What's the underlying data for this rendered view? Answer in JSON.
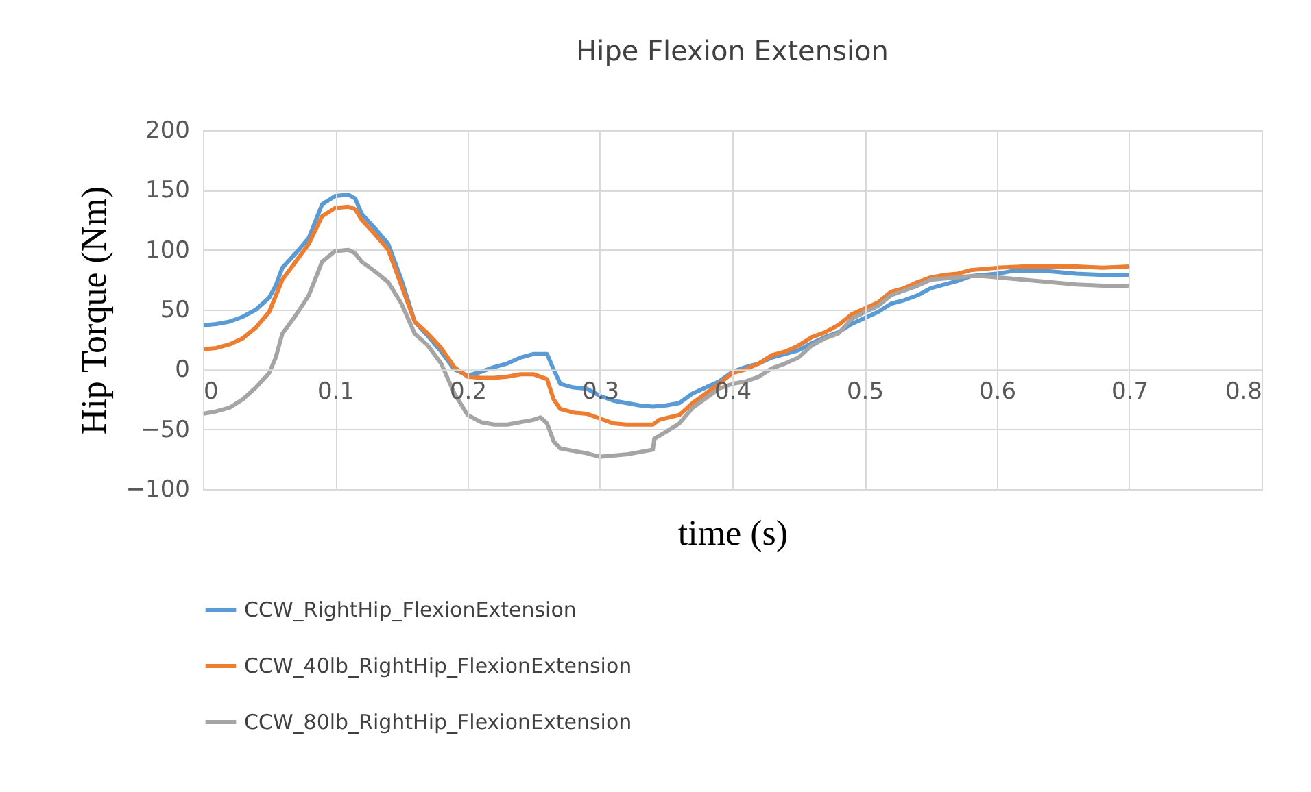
{
  "chart_data": {
    "type": "line",
    "title": "Hipe Flexion Extension",
    "xlabel": "time (s)",
    "ylabel": "Hip Torque (Nm)",
    "xlim": [
      0,
      0.8
    ],
    "xticks": [
      {
        "value": 0,
        "label": "0"
      },
      0.1,
      0.2,
      0.3,
      0.4,
      0.5,
      0.6,
      0.7,
      0.8
    ],
    "ylim": [
      -100,
      200
    ],
    "yticks": [
      -100,
      -50,
      0,
      50,
      100,
      150,
      200
    ],
    "grid": true,
    "legend": "bottom",
    "marker": "none",
    "line_style": "solid",
    "series": [
      {
        "name": "CCW_RightHip_FlexionExtension",
        "color": "#5b9bd5",
        "x": [
          0,
          0.01,
          0.02,
          0.03,
          0.04,
          0.05,
          0.055,
          0.06,
          0.07,
          0.08,
          0.09,
          0.1,
          0.11,
          0.115,
          0.12,
          0.13,
          0.14,
          0.15,
          0.16,
          0.17,
          0.18,
          0.19,
          0.2,
          0.21,
          0.22,
          0.23,
          0.24,
          0.25,
          0.26,
          0.265,
          0.27,
          0.28,
          0.29,
          0.3,
          0.31,
          0.32,
          0.33,
          0.34,
          0.35,
          0.36,
          0.37,
          0.38,
          0.39,
          0.4,
          0.41,
          0.42,
          0.43,
          0.44,
          0.45,
          0.46,
          0.47,
          0.48,
          0.49,
          0.5,
          0.51,
          0.52,
          0.53,
          0.54,
          0.55,
          0.56,
          0.57,
          0.58,
          0.59,
          0.6,
          0.61,
          0.62,
          0.64,
          0.66,
          0.68,
          0.7
        ],
        "values": [
          37,
          38,
          40,
          44,
          50,
          60,
          70,
          85,
          97,
          110,
          138,
          145,
          146,
          143,
          130,
          118,
          105,
          75,
          40,
          28,
          15,
          0,
          -5,
          -2,
          2,
          5,
          10,
          13,
          13,
          0,
          -12,
          -15,
          -16,
          -22,
          -26,
          -28,
          -30,
          -31,
          -30,
          -28,
          -20,
          -15,
          -10,
          -2,
          2,
          5,
          10,
          13,
          16,
          22,
          27,
          31,
          38,
          43,
          48,
          55,
          58,
          62,
          68,
          71,
          74,
          78,
          79,
          80,
          82,
          82,
          82,
          80,
          79,
          79
        ]
      },
      {
        "name": "CCW_40lb_RightHip_FlexionExtension",
        "color": "#ed7d31",
        "x": [
          0,
          0.01,
          0.02,
          0.03,
          0.04,
          0.05,
          0.06,
          0.07,
          0.08,
          0.09,
          0.1,
          0.11,
          0.115,
          0.12,
          0.13,
          0.14,
          0.15,
          0.16,
          0.17,
          0.18,
          0.19,
          0.2,
          0.21,
          0.22,
          0.23,
          0.24,
          0.25,
          0.26,
          0.265,
          0.27,
          0.28,
          0.29,
          0.3,
          0.31,
          0.32,
          0.33,
          0.34,
          0.345,
          0.36,
          0.37,
          0.38,
          0.39,
          0.4,
          0.41,
          0.42,
          0.43,
          0.44,
          0.45,
          0.46,
          0.47,
          0.48,
          0.49,
          0.5,
          0.51,
          0.52,
          0.53,
          0.54,
          0.55,
          0.56,
          0.57,
          0.58,
          0.59,
          0.6,
          0.62,
          0.64,
          0.66,
          0.68,
          0.7
        ],
        "values": [
          17,
          18,
          21,
          26,
          35,
          48,
          75,
          90,
          105,
          128,
          135,
          136,
          134,
          125,
          113,
          100,
          70,
          40,
          30,
          18,
          2,
          -6,
          -7,
          -7,
          -6,
          -4,
          -4,
          -8,
          -25,
          -33,
          -36,
          -37,
          -41,
          -45,
          -46,
          -46,
          -46,
          -42,
          -38,
          -28,
          -20,
          -12,
          -3,
          0,
          5,
          12,
          15,
          20,
          27,
          31,
          37,
          46,
          51,
          56,
          65,
          68,
          73,
          77,
          79,
          80,
          83,
          84,
          85,
          86,
          86,
          86,
          85,
          86
        ]
      },
      {
        "name": "CCW_80lb_RightHip_FlexionExtension",
        "color": "#a5a5a5",
        "x": [
          0,
          0.01,
          0.02,
          0.03,
          0.04,
          0.05,
          0.055,
          0.06,
          0.07,
          0.08,
          0.09,
          0.1,
          0.11,
          0.115,
          0.12,
          0.13,
          0.14,
          0.15,
          0.16,
          0.17,
          0.18,
          0.19,
          0.2,
          0.21,
          0.22,
          0.23,
          0.24,
          0.25,
          0.255,
          0.26,
          0.265,
          0.27,
          0.28,
          0.29,
          0.3,
          0.31,
          0.32,
          0.33,
          0.34,
          0.341,
          0.35,
          0.36,
          0.37,
          0.38,
          0.39,
          0.4,
          0.41,
          0.42,
          0.43,
          0.44,
          0.45,
          0.46,
          0.47,
          0.48,
          0.49,
          0.5,
          0.51,
          0.52,
          0.53,
          0.54,
          0.55,
          0.56,
          0.57,
          0.58,
          0.59,
          0.6,
          0.62,
          0.64,
          0.66,
          0.68,
          0.7
        ],
        "values": [
          -37,
          -35,
          -32,
          -25,
          -15,
          -3,
          10,
          30,
          45,
          62,
          90,
          99,
          100,
          97,
          90,
          82,
          73,
          55,
          30,
          20,
          5,
          -20,
          -38,
          -44,
          -46,
          -46,
          -44,
          -42,
          -40,
          -45,
          -60,
          -66,
          -68,
          -70,
          -73,
          -72,
          -71,
          -69,
          -67,
          -58,
          -52,
          -45,
          -32,
          -24,
          -16,
          -12,
          -10,
          -6,
          1,
          5,
          10,
          20,
          26,
          30,
          42,
          48,
          53,
          62,
          66,
          70,
          75,
          76,
          77,
          78,
          78,
          77,
          75,
          73,
          71,
          70,
          70
        ]
      }
    ]
  }
}
